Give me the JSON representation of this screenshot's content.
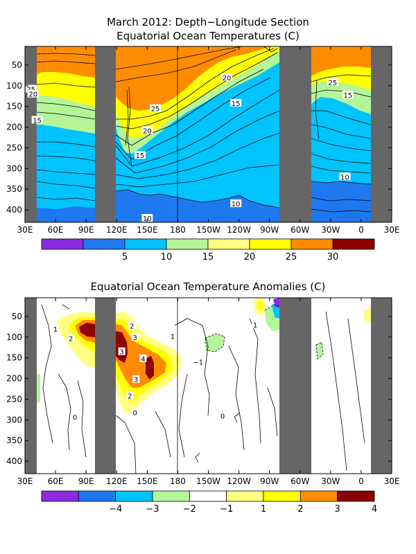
{
  "chart_data": [
    {
      "type": "heatmap",
      "title_line1": "March 2012: Depth−Longitude Section",
      "title_line2": "Equatorial Ocean Temperatures (C)",
      "xlabel": "",
      "ylabel": "",
      "x_ticks": [
        "30E",
        "60E",
        "90E",
        "120E",
        "150E",
        "180",
        "150W",
        "120W",
        "90W",
        "60W",
        "30W",
        "0",
        "30E"
      ],
      "y_ticks": [
        "50",
        "100",
        "150",
        "200",
        "250",
        "300",
        "350",
        "400"
      ],
      "ylim": [
        430,
        5
      ],
      "colorbar": {
        "bins": [
          {
            "color": "#8a2be2",
            "label": ""
          },
          {
            "color": "#1e78f0",
            "label": "5"
          },
          {
            "color": "#00c4ff",
            "label": "10"
          },
          {
            "color": "#b4f59a",
            "label": "15"
          },
          {
            "color": "#ffff80",
            "label": "20"
          },
          {
            "color": "#ffff00",
            "label": "25"
          },
          {
            "color": "#ff8c00",
            "label": "30"
          },
          {
            "color": "#8b0000",
            "label": ""
          }
        ]
      },
      "contour_labels": [
        {
          "text": "25",
          "lon": 36,
          "depth": 108
        },
        {
          "text": "20",
          "lon": 38,
          "depth": 120
        },
        {
          "text": "15",
          "lon": 42,
          "depth": 183
        },
        {
          "text": "25",
          "lon": 158,
          "depth": 155
        },
        {
          "text": "20",
          "lon": 150,
          "depth": 208
        },
        {
          "text": "15",
          "lon": 143,
          "depth": 268
        },
        {
          "text": "10",
          "lon": 150,
          "depth": 420
        },
        {
          "text": "20",
          "lon": 228,
          "depth": 80
        },
        {
          "text": "15",
          "lon": 237,
          "depth": 142
        },
        {
          "text": "10",
          "lon": 237,
          "depth": 385
        },
        {
          "text": "25",
          "lon": 332,
          "depth": 92
        },
        {
          "text": "15",
          "lon": 347,
          "depth": 122
        },
        {
          "text": "10",
          "lon": 344,
          "depth": 320
        }
      ]
    },
    {
      "type": "heatmap",
      "title": "Equatorial Ocean Temperature Anomalies (C)",
      "xlabel": "",
      "ylabel": "",
      "x_ticks": [
        "30E",
        "60E",
        "90E",
        "120E",
        "150E",
        "180",
        "150W",
        "120W",
        "90W",
        "60W",
        "30W",
        "0",
        "30E"
      ],
      "y_ticks": [
        "50",
        "100",
        "150",
        "200",
        "250",
        "300",
        "350",
        "400"
      ],
      "ylim": [
        430,
        5
      ],
      "colorbar": {
        "bins": [
          {
            "color": "#8a2be2",
            "label": ""
          },
          {
            "color": "#1e78f0",
            "label": "−4"
          },
          {
            "color": "#00c4ff",
            "label": "−3"
          },
          {
            "color": "#b4f59a",
            "label": "−2"
          },
          {
            "color": "#ffffff",
            "label": "−1"
          },
          {
            "color": "#ffff80",
            "label": "1"
          },
          {
            "color": "#ffff00",
            "label": "2"
          },
          {
            "color": "#ff8c00",
            "label": "3"
          },
          {
            "color": "#8b0000",
            "label": "4"
          }
        ]
      },
      "contour_labels": [
        {
          "text": "1",
          "lon": 60,
          "depth": 80
        },
        {
          "text": "2",
          "lon": 75,
          "depth": 103
        },
        {
          "text": "2",
          "lon": 135,
          "depth": 73
        },
        {
          "text": "3",
          "lon": 138,
          "depth": 100
        },
        {
          "text": "3",
          "lon": 125,
          "depth": 135
        },
        {
          "text": "4",
          "lon": 146,
          "depth": 152
        },
        {
          "text": "3",
          "lon": 139,
          "depth": 202
        },
        {
          "text": "2",
          "lon": 133,
          "depth": 242
        },
        {
          "text": "1",
          "lon": 175,
          "depth": 98
        },
        {
          "text": "−1",
          "lon": 200,
          "depth": 160
        },
        {
          "text": "0",
          "lon": 79,
          "depth": 293
        },
        {
          "text": "1",
          "lon": 256,
          "depth": 70
        },
        {
          "text": "0",
          "lon": 138,
          "depth": 282
        },
        {
          "text": "0",
          "lon": 224,
          "depth": 290
        }
      ]
    }
  ]
}
